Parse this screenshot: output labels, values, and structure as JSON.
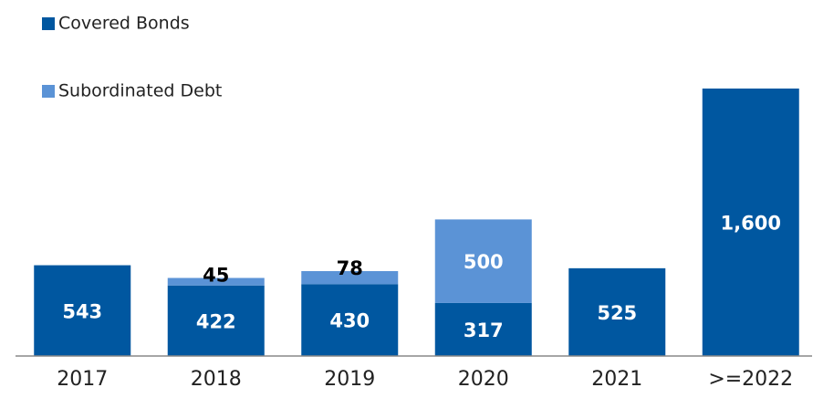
{
  "chart_data": {
    "type": "stacked-bar",
    "categories": [
      "2017",
      "2018",
      "2019",
      "2020",
      "2021",
      ">=2022"
    ],
    "series": [
      {
        "name": "Covered Bonds",
        "color": "#0057a0",
        "values": [
          543,
          422,
          430,
          317,
          525,
          1600
        ],
        "value_labels": [
          "543",
          "422",
          "430",
          "317",
          "525",
          "1,600"
        ]
      },
      {
        "name": "Subordinated Debt",
        "color": "#5b93d6",
        "values": [
          null,
          45,
          78,
          500,
          null,
          null
        ]
      }
    ],
    "legend": "top-left"
  }
}
